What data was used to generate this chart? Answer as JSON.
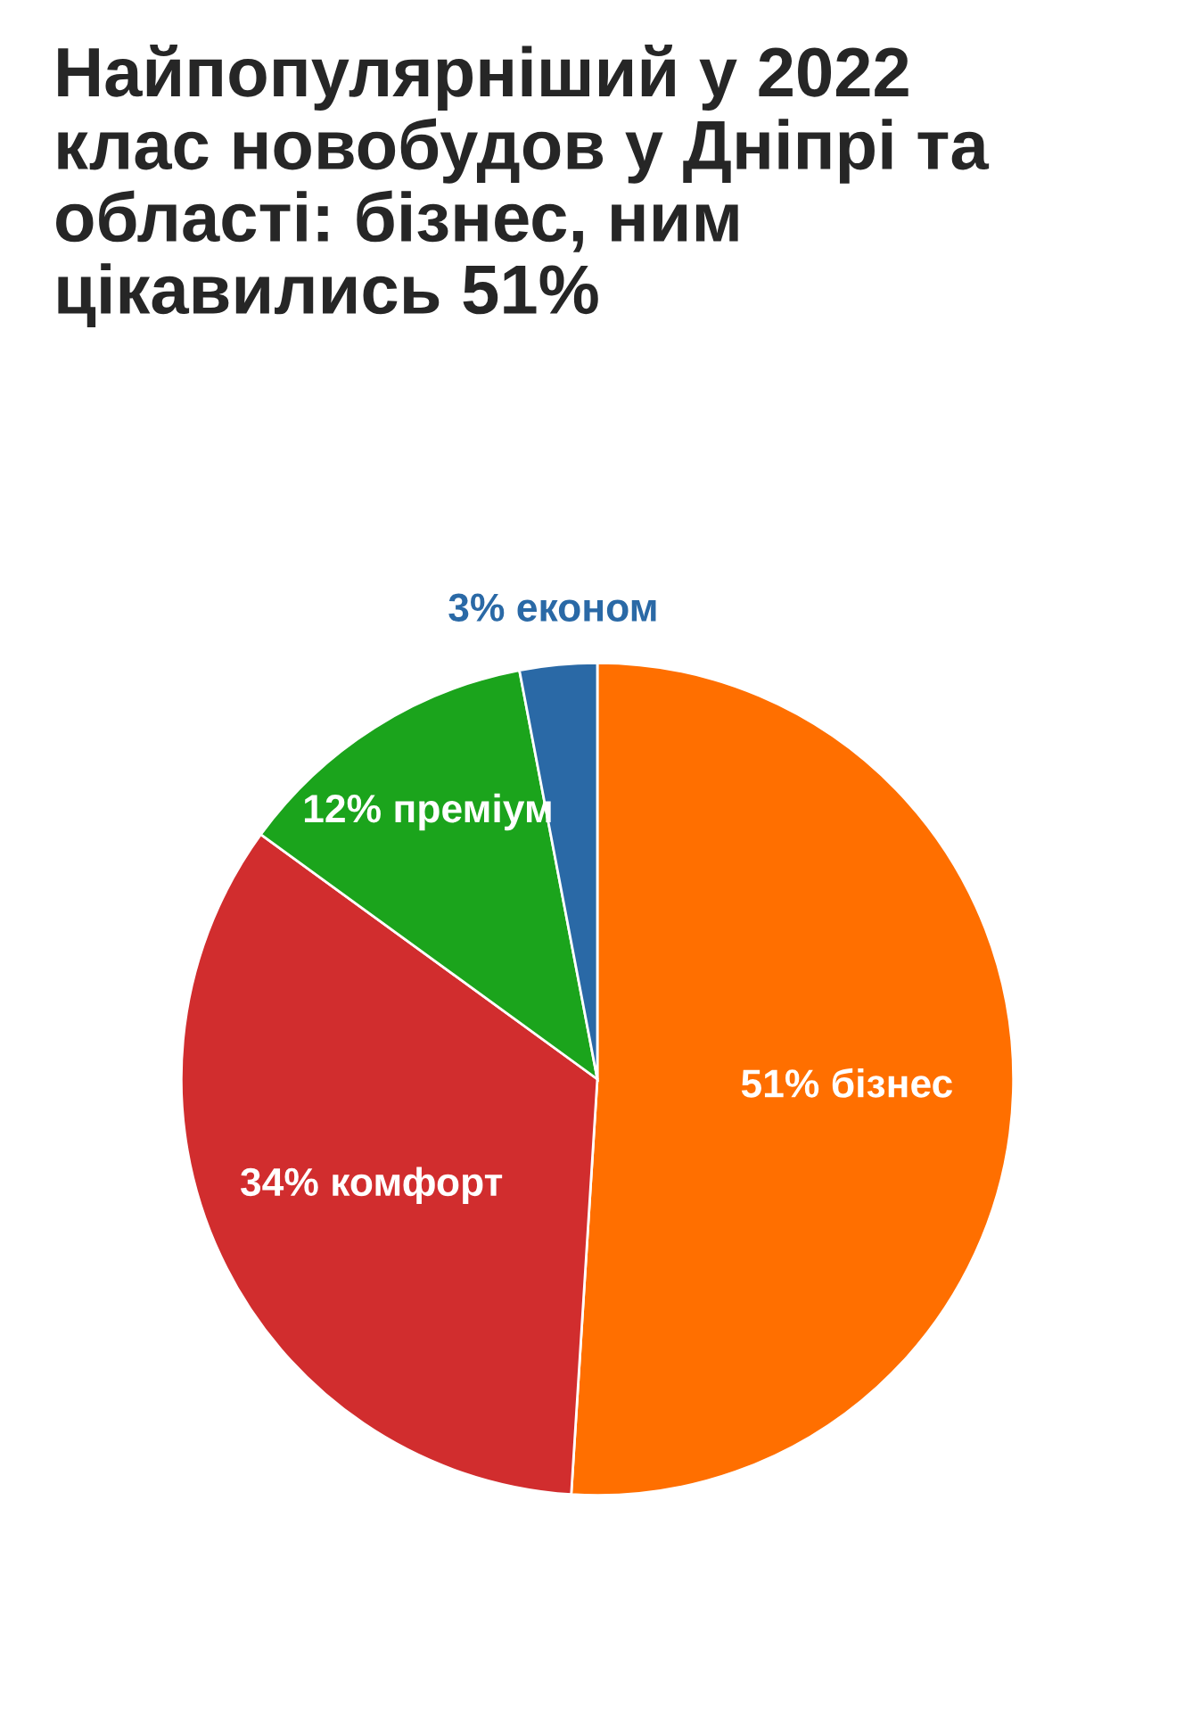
{
  "chart_data": {
    "type": "pie",
    "title": "Найпопулярніший у 2022\nклас новобудов у Дніпрі та\nобласті: бізнес, ним\nцікавились 51%",
    "categories": [
      "бізнес",
      "комфорт",
      "преміум",
      "економ"
    ],
    "values": [
      51,
      34,
      12,
      3
    ],
    "colors": [
      "#ff6f00",
      "#d12d2e",
      "#1ba41c",
      "#2a69a6"
    ],
    "value_labels": [
      "51%",
      "34%",
      "12%",
      "3%"
    ],
    "legend": false
  }
}
